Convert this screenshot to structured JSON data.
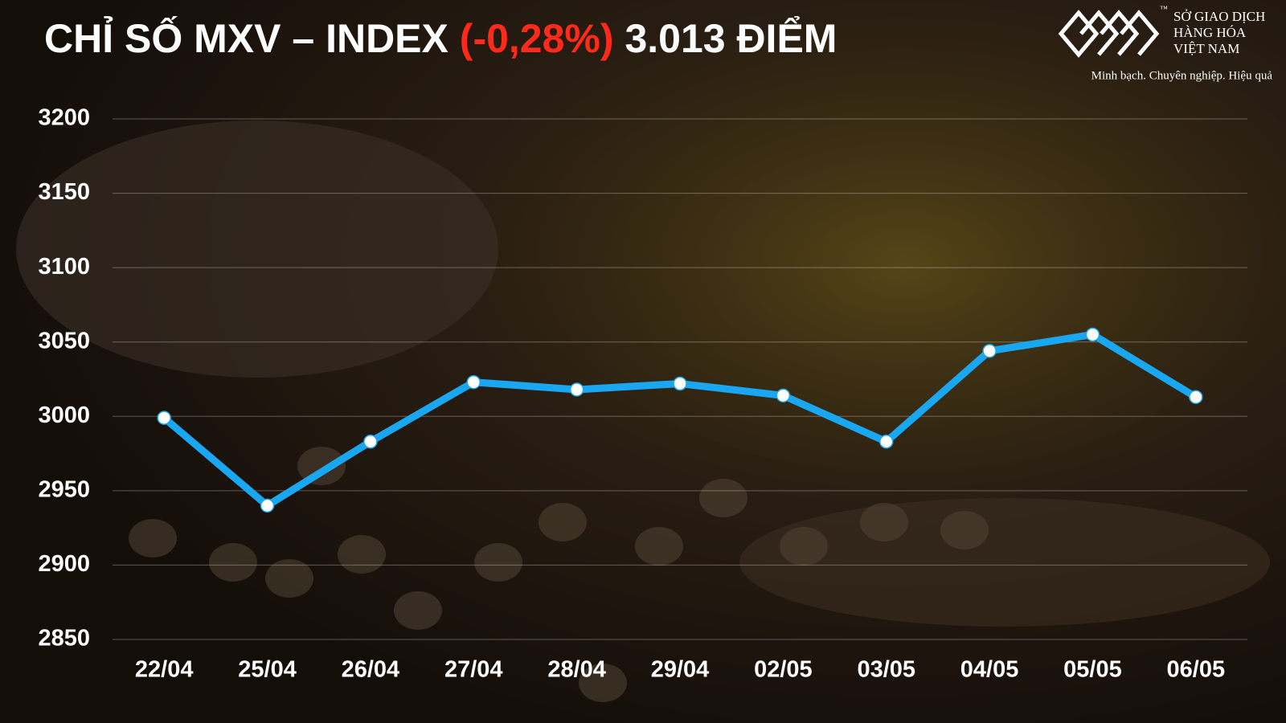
{
  "chart_data": {
    "type": "line",
    "title": {
      "main": "CHỈ SỐ MXV – INDEX",
      "change": "(-0,28%)",
      "level": "3.013 ĐIỂM"
    },
    "brand": {
      "name_line1": "SỞ GIAO DỊCH",
      "name_line2": "HÀNG HÓA",
      "name_line3": "VIỆT NAM",
      "trademark": "™",
      "slogan": "Minh bạch. Chuyên nghiệp. Hiệu quả"
    },
    "categories": [
      "22/04",
      "25/04",
      "26/04",
      "27/04",
      "28/04",
      "29/04",
      "02/05",
      "03/05",
      "04/05",
      "05/05",
      "06/05"
    ],
    "values": [
      2999,
      2940,
      2983,
      3023,
      3018,
      3022,
      3014,
      2983,
      3044,
      3055,
      3013
    ],
    "color": "#1aa7f2",
    "ylim": [
      2850,
      3200
    ],
    "yticks": [
      2850,
      2900,
      2950,
      3000,
      3050,
      3100,
      3150,
      3200
    ],
    "grid": true
  }
}
